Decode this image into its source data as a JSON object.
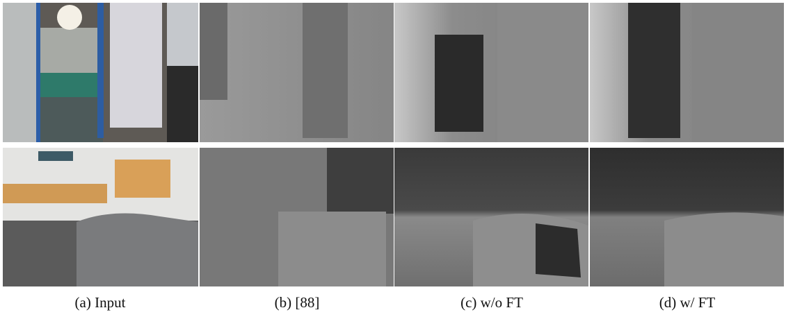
{
  "captions": [
    "(a) Input",
    "(b) [88]",
    "(c) w/o FT",
    "(d) w/ FT"
  ]
}
